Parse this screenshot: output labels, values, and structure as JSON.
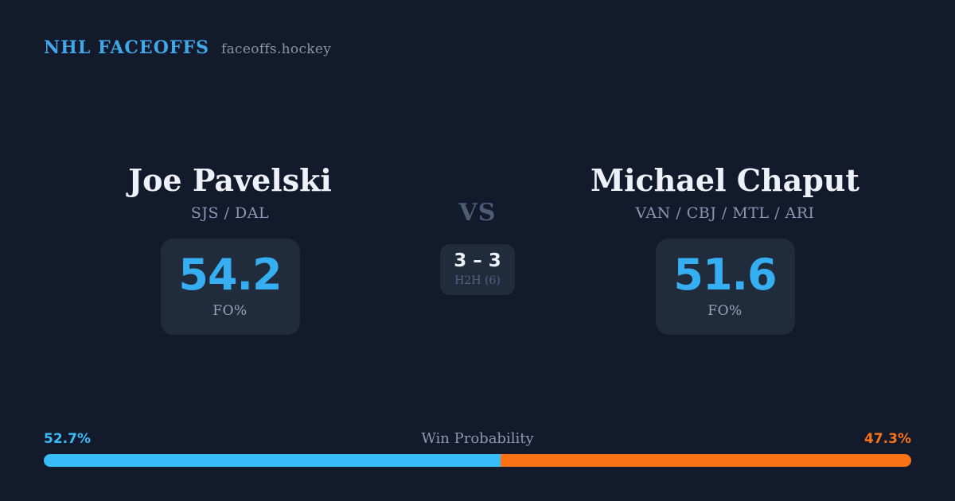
{
  "header": {
    "brand": "NHL FACEOFFS",
    "site": "faceoffs.hockey"
  },
  "matchup": {
    "vs_label": "VS",
    "h2h": {
      "score": "3 – 3",
      "label": "H2H (6)"
    },
    "players": [
      {
        "name": "Joe Pavelski",
        "teams": "SJS / DAL",
        "fo_pct": "54.2",
        "stat_label": "FO%"
      },
      {
        "name": "Michael Chaput",
        "teams": "VAN / CBJ / MTL / ARI",
        "fo_pct": "51.6",
        "stat_label": "FO%"
      }
    ]
  },
  "win_probability": {
    "label": "Win Probability",
    "left_pct": "52.7%",
    "right_pct": "47.3%",
    "left_value": 52.7,
    "right_value": 47.3
  },
  "colors": {
    "background": "#121a2b",
    "card": "#202b3c",
    "accent_blue": "#38bdf8",
    "stat_blue": "#35aef2",
    "accent_orange": "#f97316",
    "brand_blue": "#41a7e8",
    "text_primary": "#eef2f8",
    "text_muted": "#8a97ac",
    "text_dim": "#55627b"
  }
}
